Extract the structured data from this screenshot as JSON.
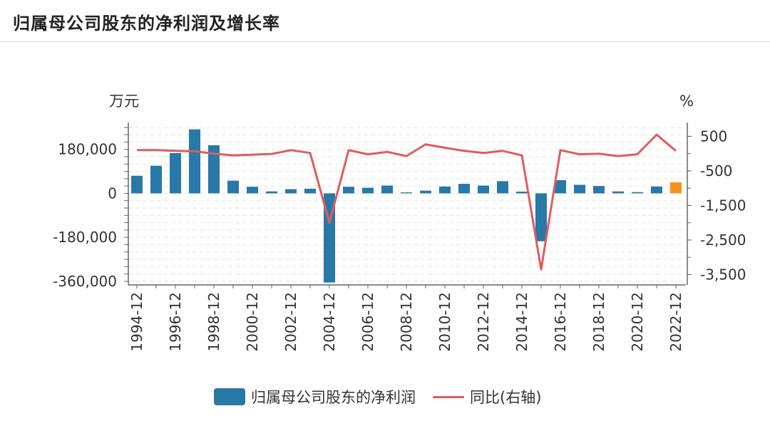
{
  "header": {
    "title": "归属母公司股东的净利润及增长率"
  },
  "chart_data": {
    "type": "bar",
    "left_unit": "万元",
    "right_unit": "%",
    "categories": [
      "1994-12",
      "1995-12",
      "1996-12",
      "1997-12",
      "1998-12",
      "1999-12",
      "2000-12",
      "2001-12",
      "2002-12",
      "2003-12",
      "2004-12",
      "2005-12",
      "2006-12",
      "2007-12",
      "2008-12",
      "2009-12",
      "2010-12",
      "2011-12",
      "2012-12",
      "2013-12",
      "2014-12",
      "2015-12",
      "2016-12",
      "2017-12",
      "2018-12",
      "2019-12",
      "2020-12",
      "2021-12",
      "2022-12"
    ],
    "x_tick_labels": [
      "1994-12",
      "1996-12",
      "1998-12",
      "2000-12",
      "2002-12",
      "2004-12",
      "2006-12",
      "2008-12",
      "2010-12",
      "2012-12",
      "2014-12",
      "2016-12",
      "2018-12",
      "2020-12",
      "2022-12"
    ],
    "series": [
      {
        "name": "归属母公司股东的净利润",
        "type": "bar",
        "axis": "left",
        "color": "#2878a8",
        "highlight_color": "#f5921e",
        "values": [
          72000,
          113000,
          165000,
          262000,
          197000,
          52000,
          27000,
          8000,
          17000,
          19000,
          -365000,
          27000,
          23000,
          32000,
          4000,
          11000,
          28000,
          39000,
          32000,
          50000,
          7000,
          -196000,
          54000,
          35000,
          30000,
          8000,
          5000,
          28000,
          45000
        ]
      },
      {
        "name": "同比(右轴)",
        "type": "line",
        "axis": "right",
        "color": "#e05c5c",
        "values": [
          100,
          100,
          80,
          70,
          0,
          -50,
          -30,
          -10,
          100,
          20,
          -2000,
          100,
          -20,
          50,
          -70,
          270,
          170,
          80,
          20,
          80,
          -50,
          -3350,
          100,
          -20,
          0,
          -70,
          -20,
          550,
          80
        ]
      }
    ],
    "left_axis": {
      "ticks": [
        180000,
        0,
        -180000,
        -360000
      ],
      "tick_labels": [
        "180,000",
        "0",
        "-180,000",
        "-360,000"
      ],
      "range": [
        -375000,
        290000
      ]
    },
    "right_axis": {
      "ticks": [
        500,
        -500,
        -1500,
        -2500,
        -3500
      ],
      "tick_labels": [
        "500",
        "-500",
        "-1,500",
        "-2,500",
        "-3,500"
      ],
      "range": [
        -3800,
        900
      ]
    },
    "grid": true,
    "legend_position": "bottom"
  }
}
